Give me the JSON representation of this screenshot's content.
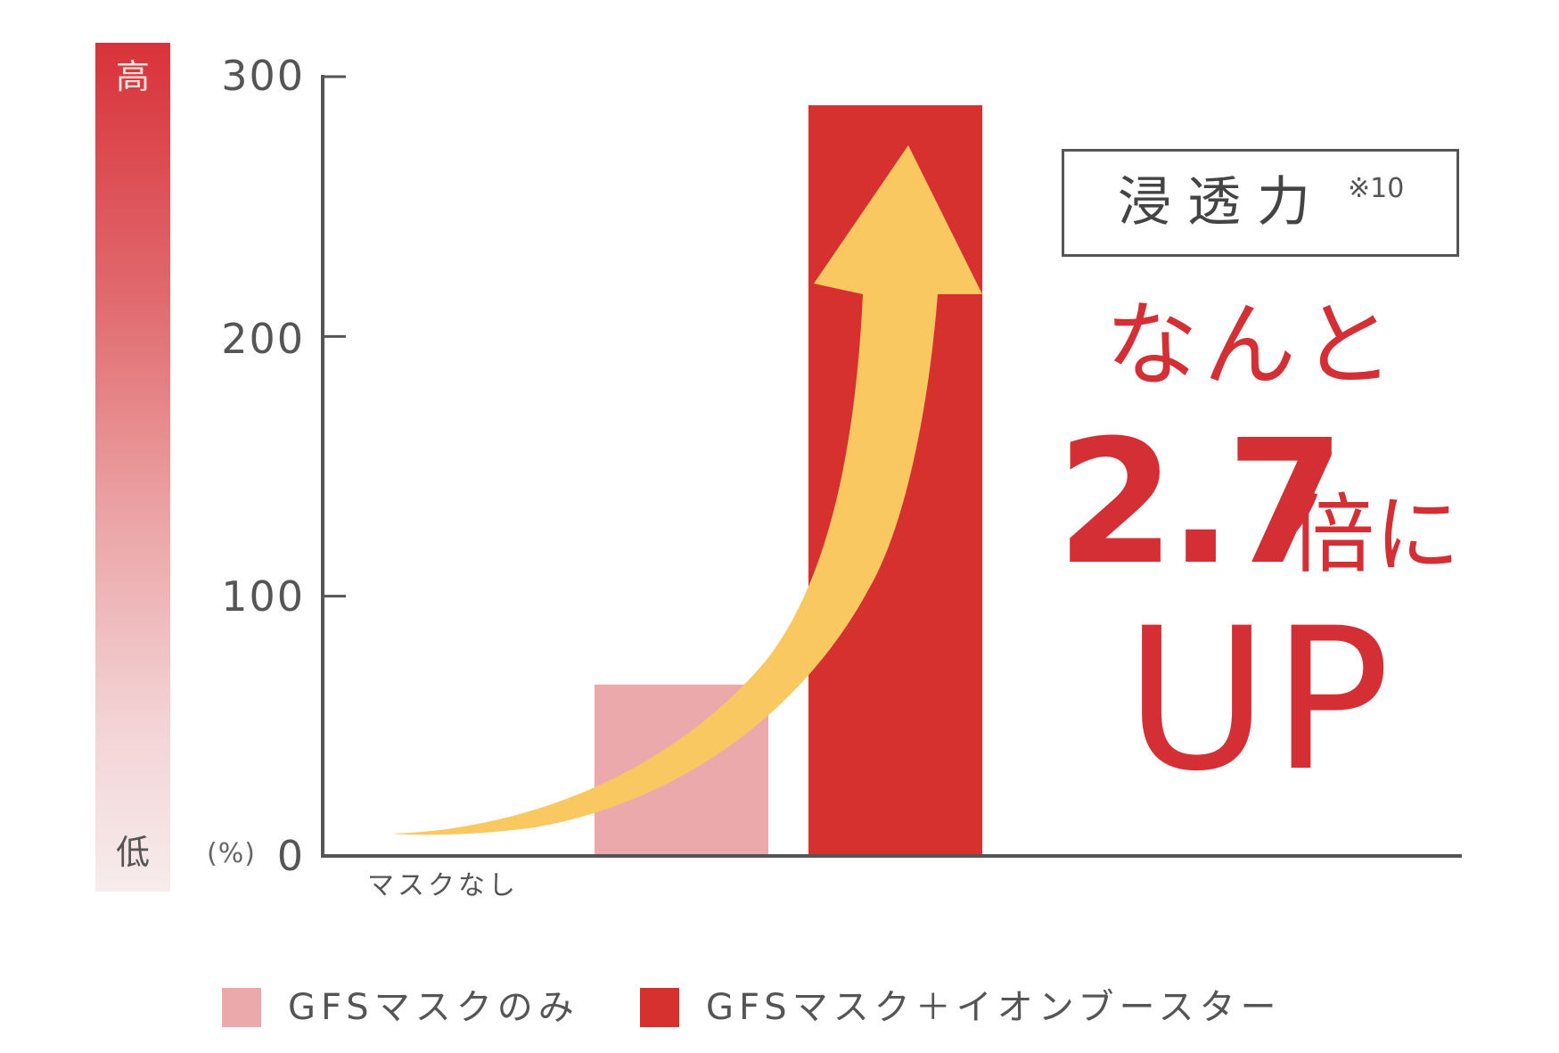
{
  "colors": {
    "series_mask_only": "#eba9ab",
    "series_mask_booster": "#d6312f",
    "arrow": "#fac861",
    "axis": "#555555",
    "callout": "#d42f35"
  },
  "scale_bar": {
    "high_label": "高",
    "low_label": "低"
  },
  "axis": {
    "unit_label": "(%)",
    "ticks": [
      "0",
      "100",
      "200",
      "300"
    ]
  },
  "title_box": {
    "title": "浸透力",
    "note": "※10"
  },
  "callout": {
    "line1": "なんと",
    "number": "2.7",
    "suffix": "倍に",
    "line3": "UP"
  },
  "legend": [
    {
      "label": "GFSマスクのみ",
      "color": "#eba9ab"
    },
    {
      "label": "GFSマスク＋イオンブースター",
      "color": "#d6312f"
    }
  ],
  "chart_data": {
    "type": "bar",
    "title": "浸透力 ※10",
    "categories": [
      "マスクなし",
      "GFSマスクのみ",
      "GFSマスク＋イオンブースター"
    ],
    "values": [
      0,
      66,
      289
    ],
    "series": [
      {
        "name": "GFSマスクのみ",
        "values": [
          null,
          66,
          null
        ]
      },
      {
        "name": "GFSマスク＋イオンブースター",
        "values": [
          null,
          null,
          289
        ]
      }
    ],
    "xlabel": "",
    "ylabel": "(%)",
    "ylim": [
      0,
      300
    ],
    "yticks": [
      0,
      100,
      200,
      300
    ],
    "grid": false,
    "legend_position": "bottom",
    "annotations": [
      "なんと 2.7倍に UP",
      "高",
      "低",
      "curved upward arrow"
    ]
  }
}
